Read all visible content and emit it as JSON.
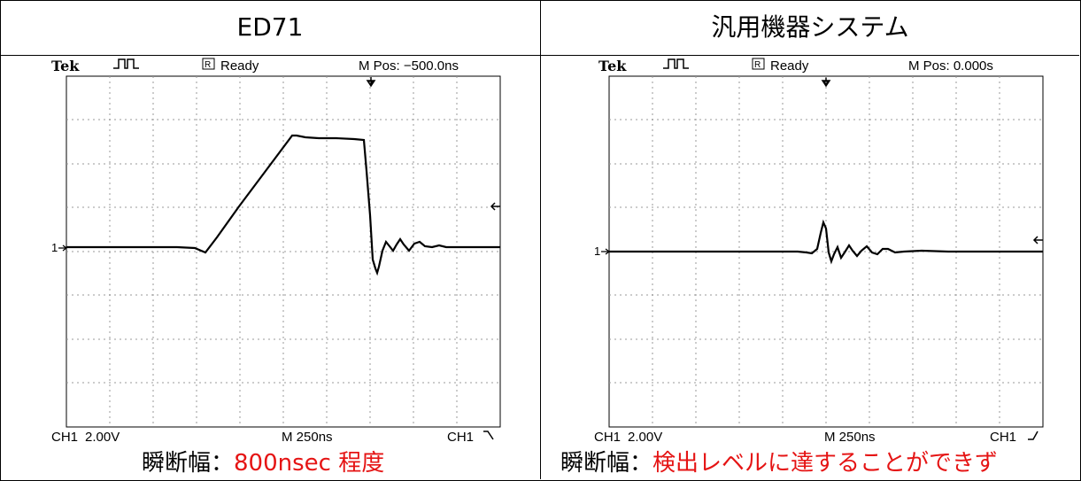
{
  "columns": [
    {
      "title": "ED71",
      "scope": {
        "brand": "Tek",
        "status": "Ready",
        "trigger_mode_icon": "R",
        "mpos": "M Pos: −500.0ns",
        "marker_1": "1",
        "ch1_label": "CH1",
        "ch1_scale": "2.00V",
        "timebase": "M 250ns",
        "trigger_label": "CH1",
        "trigger_slope_icon": "falling-edge-icon"
      },
      "caption_key": "瞬断幅：",
      "caption_value": "800nsec 程度"
    },
    {
      "title": "汎用機器システム",
      "scope": {
        "brand": "Tek",
        "status": "Ready",
        "trigger_mode_icon": "R",
        "mpos": "M Pos: 0.000s",
        "marker_1": "1",
        "ch1_label": "CH1",
        "ch1_scale": "2.00V",
        "timebase": "M 250ns",
        "trigger_label": "CH1",
        "trigger_slope_icon": "rising-edge-icon"
      },
      "caption_key": "瞬断幅：",
      "caption_value": "検出レベルに達することができず"
    }
  ],
  "colors": {
    "caption_value": "#e51414",
    "trace": "#000000",
    "grid": "#999999"
  }
}
